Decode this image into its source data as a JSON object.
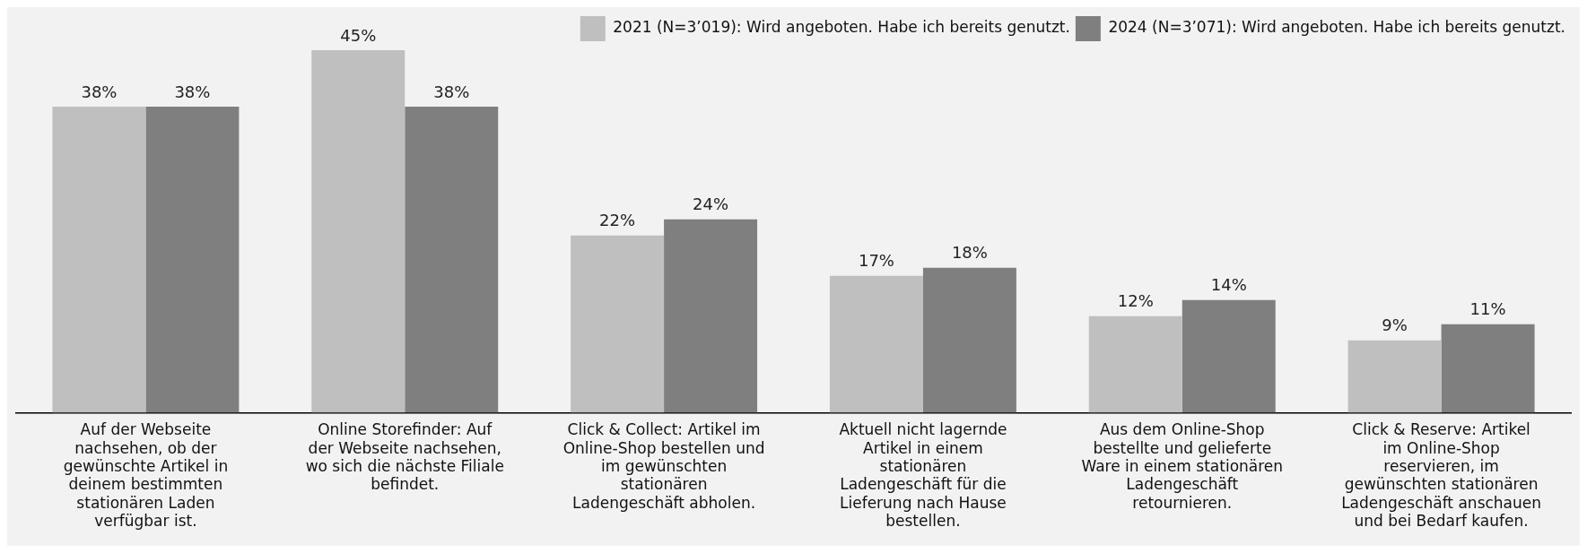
{
  "chart_data": {
    "type": "bar",
    "categories": [
      "Auf der Webseite nachsehen, ob der gewünschte Artikel in deinem bestimmten stationären Laden verfügbar ist.",
      "Online Storefinder: Auf der Webseite nachsehen, wo sich die nächste Filiale befindet.",
      "Click & Collect: Artikel im Online-Shop bestellen und im gewünschten stationären Ladengeschäft abholen.",
      "Aktuell nicht lagernde Artikel in einem stationären Ladengeschäft für die Lieferung nach Hause bestellen.",
      "Aus dem Online-Shop bestellte und gelieferte Ware in einem stationären Ladengeschäft retournieren.",
      "Click & Reserve: Artikel im Online-Shop reservieren, im gewünschten stationären Ladengeschäft anschauen und bei Bedarf kaufen."
    ],
    "series": [
      {
        "name": "2021 (N=3’019): Wird angeboten. Habe ich bereits genutzt.",
        "color": "#bfbfbf",
        "values": [
          38,
          45,
          22,
          17,
          12,
          9
        ],
        "value_labels": [
          "38%",
          "45%",
          "22%",
          "17%",
          "12%",
          "9%"
        ]
      },
      {
        "name": "2024 (N=3’071): Wird angeboten. Habe ich bereits genutzt.",
        "color": "#7f7f7f",
        "values": [
          38,
          38,
          24,
          18,
          14,
          11
        ],
        "value_labels": [
          "38%",
          "38%",
          "24%",
          "18%",
          "14%",
          "11%"
        ]
      }
    ],
    "legend": "top right",
    "grid": false
  }
}
